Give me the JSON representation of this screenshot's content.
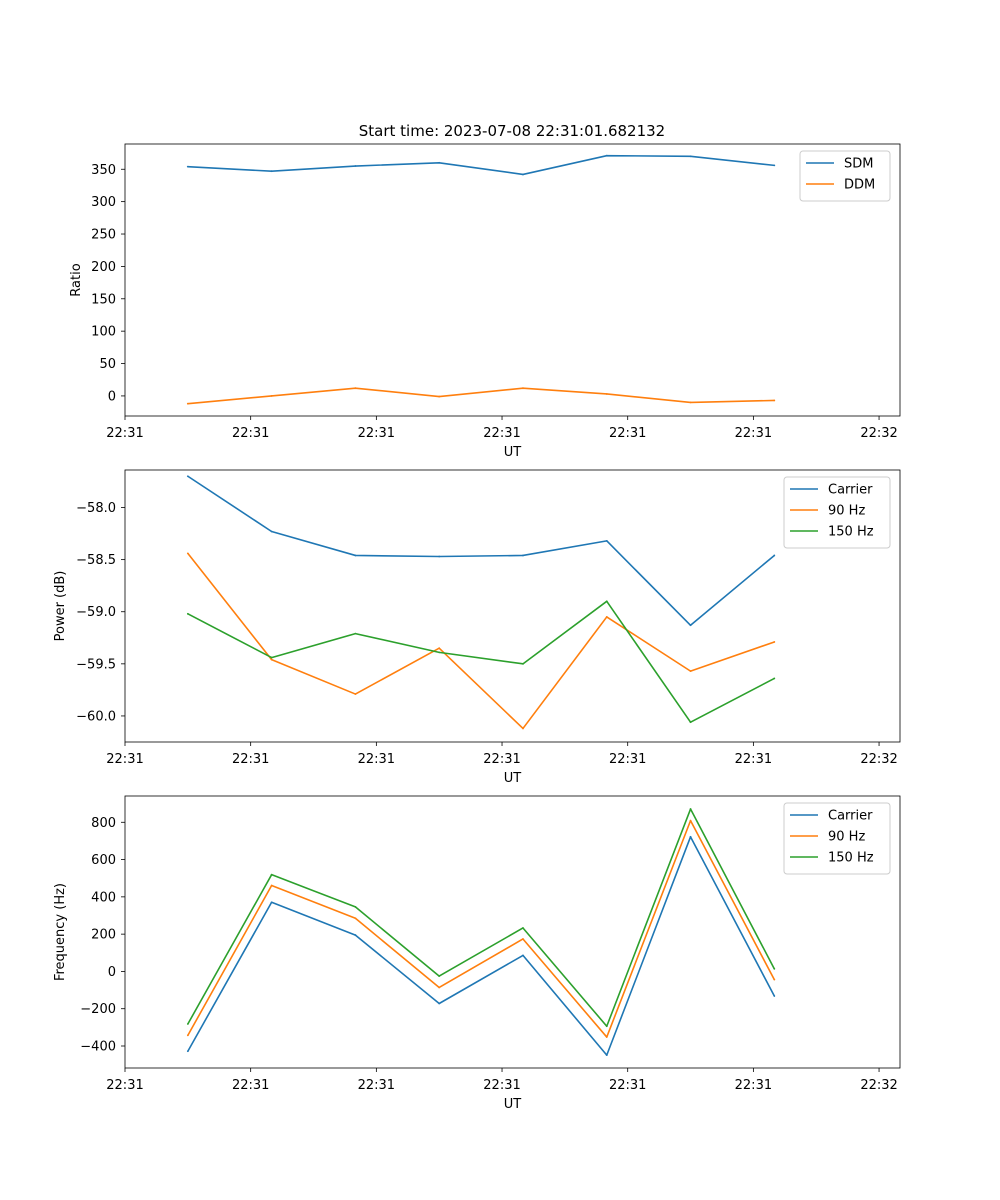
{
  "figure_title": "Start time: 2023-07-08 22:31:01.682132",
  "colors": {
    "blue": "#1f77b4",
    "orange": "#ff7f0e",
    "green": "#2ca02c"
  },
  "chart_data": [
    {
      "type": "line",
      "title": "Start time: 2023-07-08 22:31:01.682132",
      "xlabel": "UT",
      "ylabel": "Ratio",
      "x": [
        1,
        2,
        3,
        4,
        5,
        6,
        7,
        8
      ],
      "xlim": [
        0.25,
        9.5
      ],
      "xticks": [
        0.25,
        1.75,
        3.25,
        4.75,
        6.25,
        7.75,
        9.25
      ],
      "xtick_labels": [
        "22:31",
        "22:31",
        "22:31",
        "22:31",
        "22:31",
        "22:31",
        "22:32"
      ],
      "ylim": [
        -31,
        389
      ],
      "yticks": [
        0,
        50,
        100,
        150,
        200,
        250,
        300,
        350
      ],
      "ytick_labels": [
        "0",
        "50",
        "100",
        "150",
        "200",
        "250",
        "300",
        "350"
      ],
      "legend": "top-right",
      "series": [
        {
          "name": "SDM",
          "color": "#1f77b4",
          "values": [
            354,
            347,
            355,
            360,
            342,
            371,
            370,
            356
          ]
        },
        {
          "name": "DDM",
          "color": "#ff7f0e",
          "values": [
            -12,
            0,
            12,
            -1,
            12,
            3,
            -10,
            -7
          ]
        }
      ]
    },
    {
      "type": "line",
      "title": "",
      "xlabel": "UT",
      "ylabel": "Power (dB)",
      "x": [
        1,
        2,
        3,
        4,
        5,
        6,
        7,
        8
      ],
      "xlim": [
        0.25,
        9.5
      ],
      "xticks": [
        0.25,
        1.75,
        3.25,
        4.75,
        6.25,
        7.75,
        9.25
      ],
      "xtick_labels": [
        "22:31",
        "22:31",
        "22:31",
        "22:31",
        "22:31",
        "22:31",
        "22:32"
      ],
      "ylim": [
        -60.25,
        -57.64
      ],
      "yticks": [
        -60.0,
        -59.5,
        -59.0,
        -58.5,
        -58.0
      ],
      "ytick_labels": [
        "−60.0",
        "−59.5",
        "−59.0",
        "−58.5",
        "−58.0"
      ],
      "legend": "top-right",
      "series": [
        {
          "name": "Carrier",
          "color": "#1f77b4",
          "values": [
            -57.7,
            -58.23,
            -58.46,
            -58.47,
            -58.46,
            -58.32,
            -59.13,
            -58.46
          ]
        },
        {
          "name": "90 Hz",
          "color": "#ff7f0e",
          "values": [
            -58.44,
            -59.46,
            -59.79,
            -59.35,
            -60.12,
            -59.05,
            -59.57,
            -59.29
          ]
        },
        {
          "name": "150 Hz",
          "color": "#2ca02c",
          "values": [
            -59.02,
            -59.44,
            -59.21,
            -59.39,
            -59.5,
            -58.9,
            -60.06,
            -59.64
          ]
        }
      ]
    },
    {
      "type": "line",
      "title": "",
      "xlabel": "UT",
      "ylabel": "Frequency (Hz)",
      "x": [
        1,
        2,
        3,
        4,
        5,
        6,
        7,
        8
      ],
      "xlim": [
        0.25,
        9.5
      ],
      "xticks": [
        0.25,
        1.75,
        3.25,
        4.75,
        6.25,
        7.75,
        9.25
      ],
      "xtick_labels": [
        "22:31",
        "22:31",
        "22:31",
        "22:31",
        "22:31",
        "22:31",
        "22:32"
      ],
      "ylim": [
        -518,
        941
      ],
      "yticks": [
        -400,
        -200,
        0,
        200,
        400,
        600,
        800
      ],
      "ytick_labels": [
        "−400",
        "−200",
        "0",
        "200",
        "400",
        "600",
        "800"
      ],
      "legend": "top-right",
      "series": [
        {
          "name": "Carrier",
          "color": "#1f77b4",
          "values": [
            -428,
            371,
            195,
            -172,
            86,
            -449,
            722,
            -132
          ]
        },
        {
          "name": "90 Hz",
          "color": "#ff7f0e",
          "values": [
            -343,
            461,
            285,
            -86,
            174,
            -352,
            809,
            -44
          ]
        },
        {
          "name": "150 Hz",
          "color": "#2ca02c",
          "values": [
            -282,
            519,
            346,
            -25,
            233,
            -294,
            871,
            14
          ]
        }
      ]
    }
  ]
}
